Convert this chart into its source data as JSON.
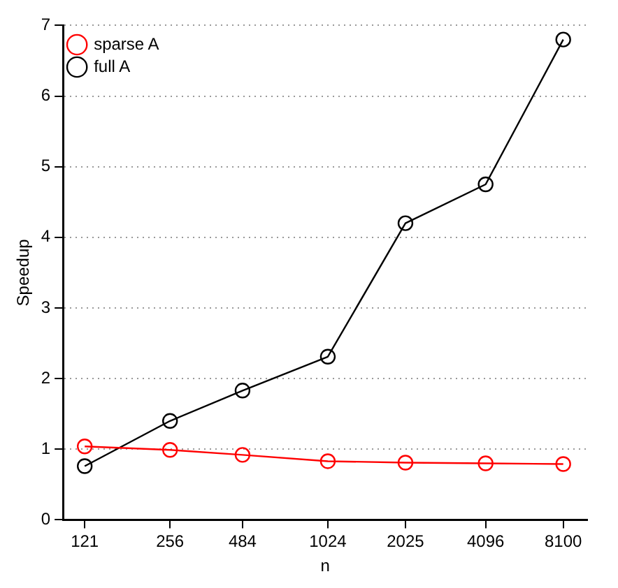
{
  "chart_data": {
    "type": "line",
    "xlabel": "n",
    "ylabel": "Speedup",
    "x": [
      121,
      256,
      484,
      1024,
      2025,
      4096,
      8100
    ],
    "series": [
      {
        "name": "sparse A",
        "color": "#ff0000",
        "values": [
          1.04,
          0.99,
          0.92,
          0.83,
          0.81,
          0.8,
          0.79
        ]
      },
      {
        "name": "full A",
        "color": "#000000",
        "values": [
          0.76,
          1.4,
          1.83,
          2.31,
          4.2,
          4.75,
          6.8
        ]
      }
    ],
    "log": "x",
    "xlim": [
      100,
      10000
    ],
    "xticks": [
      121,
      256,
      484,
      1024,
      2025,
      4096,
      8100
    ],
    "ylim": [
      0,
      7
    ],
    "yticks": [
      0,
      1,
      2,
      3,
      4,
      5,
      6,
      7
    ],
    "grid": "y",
    "legend": "top left",
    "marker": "circle",
    "line_style": "solid"
  }
}
